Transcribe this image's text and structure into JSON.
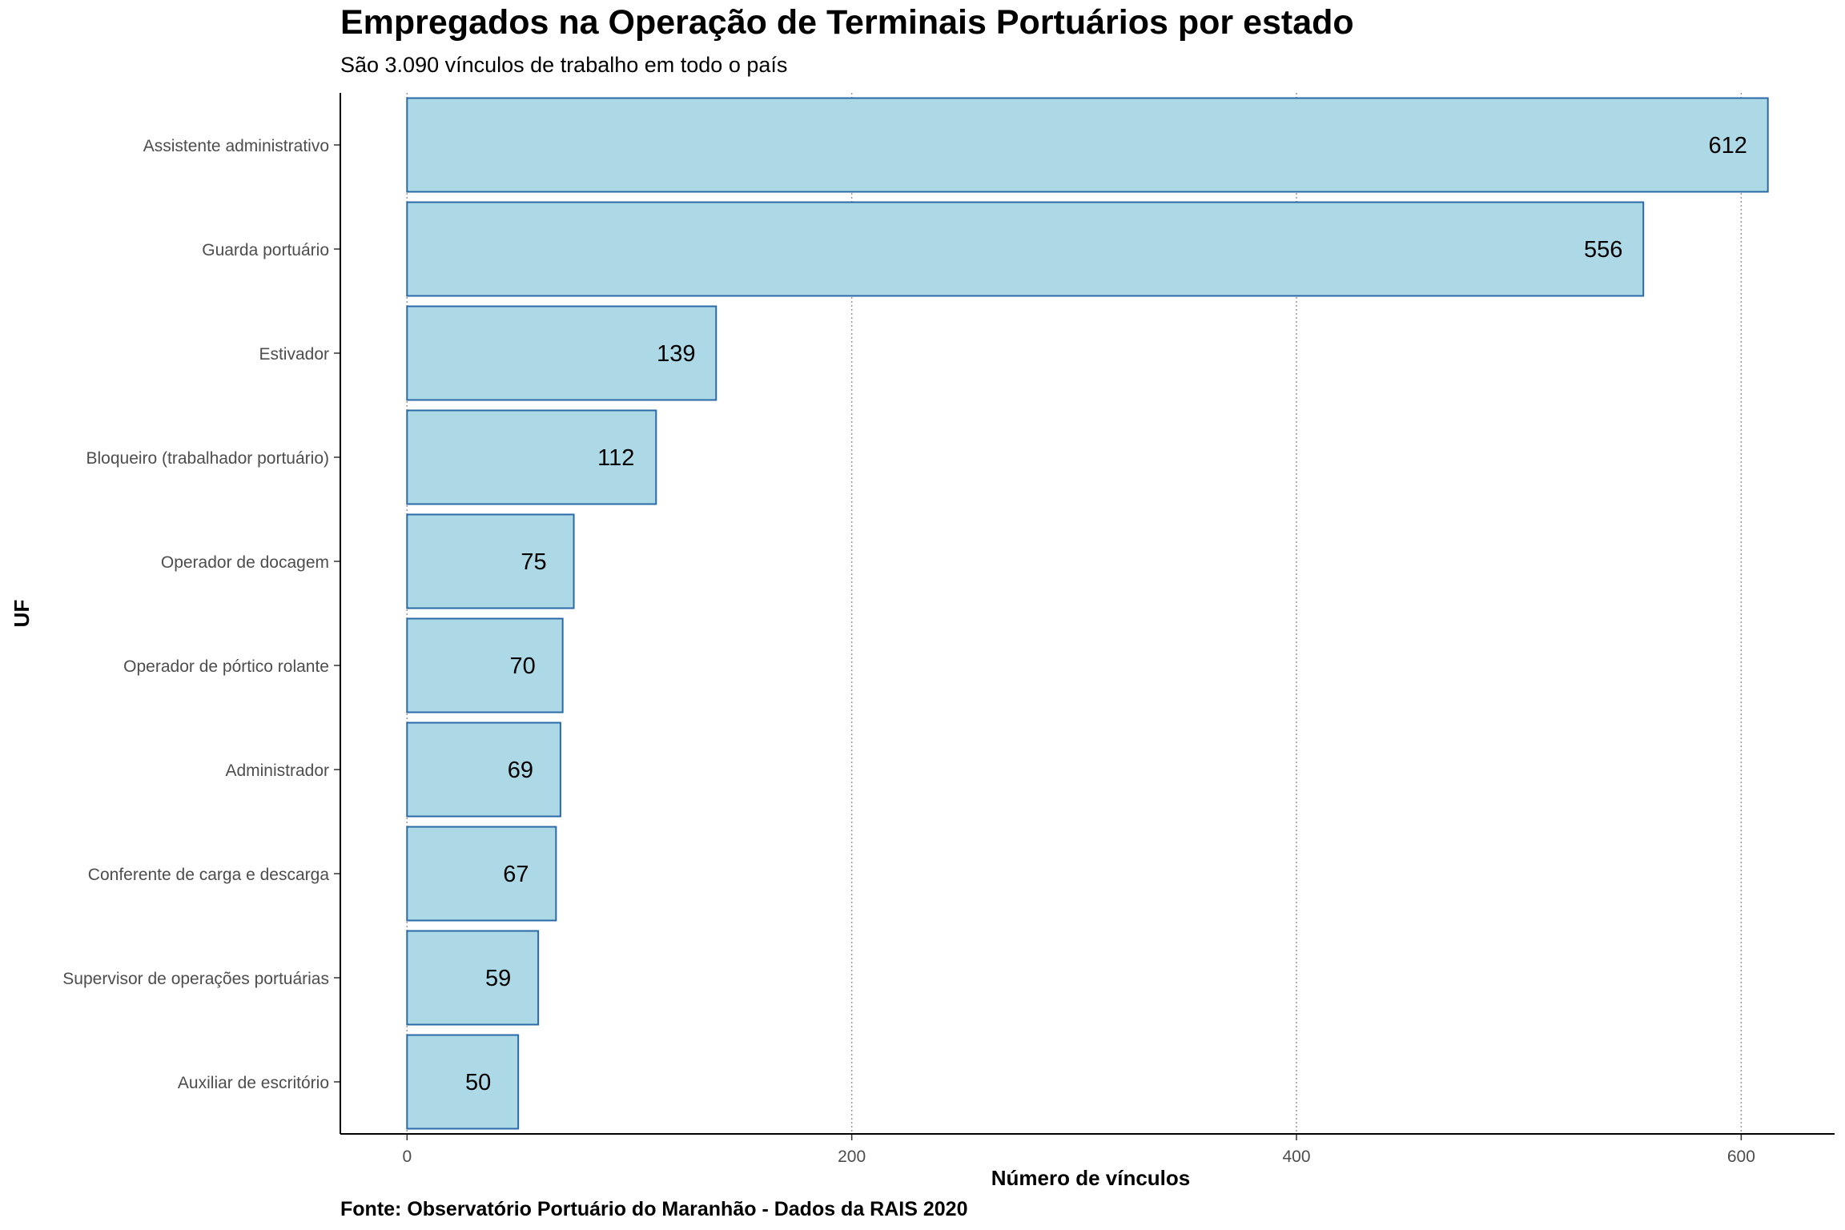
{
  "chart_data": {
    "type": "bar",
    "orientation": "horizontal",
    "title": "Empregados na Operação de Terminais Portuários por estado",
    "subtitle": "São 3.090 vínculos de trabalho em todo o país",
    "caption": "Fonte: Observatório Portuário do Maranhão - Dados da RAIS 2020",
    "xlabel": "Número de vínculos",
    "ylabel": "UF",
    "categories": [
      "Assistente administrativo",
      "Guarda portuário",
      "Estivador",
      "Bloqueiro (trabalhador portuário)",
      "Operador de docagem",
      "Operador de pórtico rolante",
      "Administrador",
      "Conferente de carga e descarga",
      "Supervisor de operações portuárias",
      "Auxiliar de escritório"
    ],
    "values": [
      612,
      556,
      139,
      112,
      75,
      70,
      69,
      67,
      59,
      50
    ],
    "data_labels": [
      "612",
      "556",
      "139",
      "112",
      "75",
      "70",
      "69",
      "67",
      "59",
      "50"
    ],
    "x_ticks": [
      0,
      200,
      400,
      600
    ],
    "x_tick_labels": [
      "0",
      "200",
      "400",
      "600"
    ],
    "xlim": [
      -30,
      642
    ],
    "grid": "vertical-dotted",
    "colors": {
      "bar_fill": "#add8e6",
      "bar_stroke": "#2b6aa8",
      "grid": "#999999",
      "axis": "#000000"
    }
  }
}
